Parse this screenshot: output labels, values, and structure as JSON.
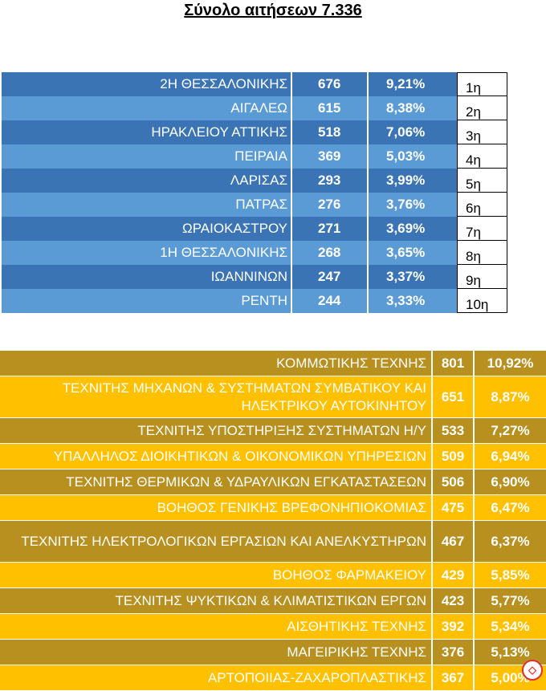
{
  "title": "Σύνολο αιτήσεων 7.336",
  "top_table": [
    {
      "name": "2Η ΘΕΣΣΑΛΟΝΙΚΗΣ",
      "count": "676",
      "pct": "9,21%",
      "rank": "1η"
    },
    {
      "name": "ΑΙΓΑΛΕΩ",
      "count": "615",
      "pct": "8,38%",
      "rank": "2η"
    },
    {
      "name": "ΗΡΑΚΛΕΙΟΥ ΑΤΤΙΚΗΣ",
      "count": "518",
      "pct": "7,06%",
      "rank": "3η"
    },
    {
      "name": "ΠΕΙΡΑΙΑ",
      "count": "369",
      "pct": "5,03%",
      "rank": "4η"
    },
    {
      "name": "ΛΑΡΙΣΑΣ",
      "count": "293",
      "pct": "3,99%",
      "rank": "5η"
    },
    {
      "name": "ΠΑΤΡΑΣ",
      "count": "276",
      "pct": "3,76%",
      "rank": "6η"
    },
    {
      "name": "ΩΡΑΙΟΚΑΣΤΡΟΥ",
      "count": "271",
      "pct": "3,69%",
      "rank": "7η"
    },
    {
      "name": "1Η ΘΕΣΣΑΛΟΝΙΚΗΣ",
      "count": "268",
      "pct": "3,65%",
      "rank": "8η"
    },
    {
      "name": "ΙΩΑΝΝΙΝΩΝ",
      "count": "247",
      "pct": "3,37%",
      "rank": "9η"
    },
    {
      "name": "ΡΕΝΤΗ",
      "count": "244",
      "pct": "3,33%",
      "rank": "10η"
    }
  ],
  "bottom_table": [
    {
      "name": "ΚΟΜΜΩΤΙΚΗΣ ΤΕΧΝΗΣ",
      "count": "801",
      "pct": "10,92%"
    },
    {
      "name": "ΤΕΧΝΙΤΗΣ ΜΗΧΑΝΩΝ & ΣΥΣΤΗΜΑΤΩΝ ΣΥΜΒΑΤΙΚΟΥ ΚΑΙ ΗΛΕΚΤΡΙΚΟΥ ΑΥΤΟΚΙΝΗΤΟΥ",
      "count": "651",
      "pct": "8,87%"
    },
    {
      "name": "ΤΕΧΝΙΤΗΣ ΥΠΟΣΤΗΡΙΞΗΣ ΣΥΣΤΗΜΑΤΩΝ Η/Υ",
      "count": "533",
      "pct": "7,27%"
    },
    {
      "name": "ΥΠΑΛΛΗΛΟΣ ΔΙΟΙΚΗΤΙΚΩΝ & ΟΙΚΟΝΟΜΙΚΩΝ ΥΠΗΡΕΣΙΩΝ",
      "count": "509",
      "pct": "6,94%"
    },
    {
      "name": "ΤΕΧΝΙΤΗΣ ΘΕΡΜΙΚΩΝ & ΥΔΡΑΥΛΙΚΩΝ ΕΓΚΑΤΑΣΤΑΣΕΩΝ",
      "count": "506",
      "pct": "6,90%"
    },
    {
      "name": "ΒΟΗΘΟΣ ΓΕΝΙΚΗΣ ΒΡΕΦΟΝΗΠΙΟΚΟΜΙΑΣ",
      "count": "475",
      "pct": "6,47%"
    },
    {
      "name": "ΤΕΧΝΙΤΗΣ ΗΛΕΚΤΡΟΛΟΓΙΚΩΝ ΕΡΓΑΣΙΩΝ ΚΑΙ ΑΝΕΛΚΥΣΤΗΡΩΝ",
      "count": "467",
      "pct": "6,37%"
    },
    {
      "name": "ΒΟΗΘΟΣ ΦΑΡΜΑΚΕΙΟΥ",
      "count": "429",
      "pct": "5,85%"
    },
    {
      "name": "ΤΕΧΝΙΤΗΣ ΨΥΚΤΙΚΩΝ & ΚΛΙΜΑΤΙΣΤΙΚΩΝ ΕΡΓΩΝ",
      "count": "423",
      "pct": "5,77%"
    },
    {
      "name": "ΑΙΣΘΗΤΙΚΗΣ ΤΕΧΝΗΣ",
      "count": "392",
      "pct": "5,34%"
    },
    {
      "name": "ΜΑΓΕΙΡΙΚΗΣ ΤΕΧΝΗΣ",
      "count": "376",
      "pct": "5,13%"
    },
    {
      "name": "ΑΡΤΟΠΟΙΙΑΣ-ΖΑΧΑΡΟΠΛΑΣΤΙΚΗΣ",
      "count": "367",
      "pct": "5,00%"
    }
  ],
  "colors": {
    "blue_dark": "#3a74b5",
    "blue_light": "#5b9bd5",
    "gold_dark": "#b8901f",
    "gold_light": "#ffc000"
  },
  "logo_icon": "site-logo-icon"
}
